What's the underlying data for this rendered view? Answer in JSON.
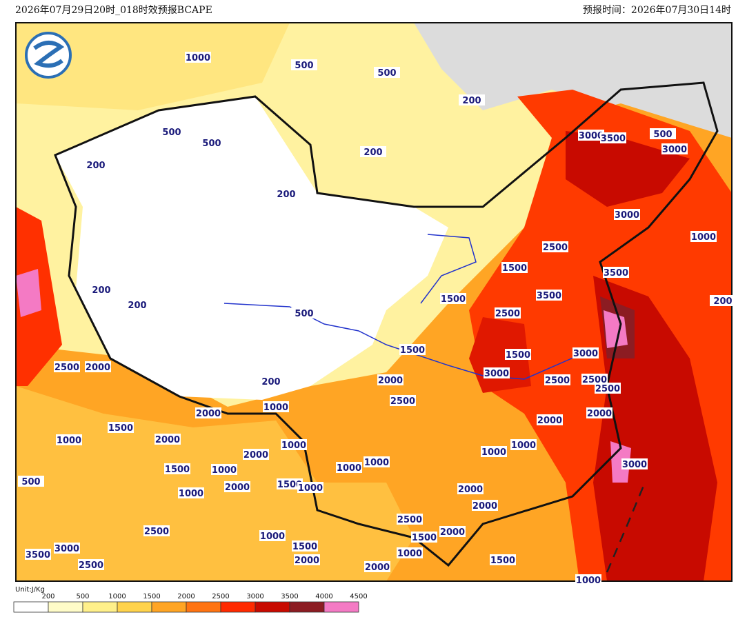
{
  "header": {
    "left": "2026年07月29日20时_018时效预报BCAPE",
    "right": "预报时间：2026年07月30日14时"
  },
  "contours": {
    "labels": [
      1000,
      500,
      500,
      200,
      500,
      500,
      200,
      200,
      200,
      3000,
      3500,
      500,
      3000,
      3000,
      1000,
      2500,
      1500,
      3500,
      1500,
      3500,
      200,
      200,
      500,
      2500,
      200,
      1500,
      1500,
      3000,
      2500,
      2000,
      2000,
      3000,
      2500,
      2500,
      2500,
      200,
      2500,
      2000,
      1000,
      2000,
      2000,
      1500,
      1000,
      2000,
      1000,
      1000,
      1000,
      2000,
      1000,
      1000,
      1500,
      1000,
      3000,
      500,
      2000,
      1500,
      1000,
      1000,
      2000,
      2000,
      2500,
      2500,
      2000,
      1000,
      1500,
      1500,
      3000,
      3500,
      2000,
      1000,
      1500,
      2500,
      2000,
      1000
    ]
  },
  "legend": {
    "unit": "Unit:J/Kg",
    "colors": [
      "#ffffff",
      "#fffcc8",
      "#fff08a",
      "#ffd34c",
      "#ffa524",
      "#ff7412",
      "#ff2a00",
      "#c80a00",
      "#8c1c22",
      "#f47ac4"
    ],
    "ticks": [
      200,
      500,
      1000,
      1500,
      2000,
      2500,
      3000,
      3500,
      4000,
      4500
    ]
  }
}
